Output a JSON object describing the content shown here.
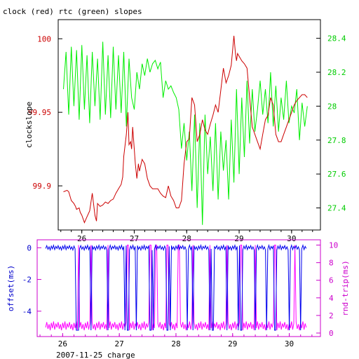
{
  "chart_data": [
    {
      "type": "line",
      "title": "clock (red) rtc (green) slopes",
      "xlabel": "",
      "ylabel": "clockslope",
      "y2label": "",
      "xlim": [
        25.55,
        30.55
      ],
      "ylim": [
        99.87,
        100.013
      ],
      "y2lim": [
        27.27,
        28.51
      ],
      "xticks": [
        26,
        27,
        28,
        29,
        30
      ],
      "yticks": [
        99.9,
        99.95,
        100
      ],
      "ytick_labels": [
        "99.9",
        "99.95",
        "100"
      ],
      "y2ticks": [
        27.4,
        27.6,
        27.8,
        28.0,
        28.2,
        28.4
      ],
      "y2tick_labels": [
        "27.4",
        "27.6",
        "27.8",
        "28",
        "28.2",
        "28.4"
      ],
      "colors": {
        "frame": "#000000",
        "clock": "#cc0000",
        "rtc": "#00ee00",
        "y_axis": "#cc0000",
        "y2_axis": "#00cc00"
      },
      "series": [
        {
          "axis": "left",
          "x": [
            25.65,
            25.72,
            25.75,
            25.8,
            25.85,
            25.88,
            25.9,
            25.95,
            25.97,
            26.0,
            26.02,
            26.05,
            26.1,
            26.15,
            26.2,
            26.25,
            26.28,
            26.3,
            26.35,
            26.4,
            26.45,
            26.5,
            26.55,
            26.6,
            26.65,
            26.7,
            26.75,
            26.78,
            26.8,
            26.85,
            26.88,
            26.9,
            26.93,
            26.95,
            26.97,
            27.0,
            27.02,
            27.05,
            27.08,
            27.1,
            27.15,
            27.2,
            27.25,
            27.3,
            27.35,
            27.4,
            27.45,
            27.5,
            27.55,
            27.6,
            27.65,
            27.7,
            27.75,
            27.8,
            27.85,
            27.9,
            27.95,
            28.0,
            28.05,
            28.1,
            28.15,
            28.2,
            28.25,
            28.3,
            28.35,
            28.4,
            28.45,
            28.5,
            28.55,
            28.6,
            28.65,
            28.7,
            28.75,
            28.8,
            28.85,
            28.9,
            28.93,
            28.95,
            28.97,
            29.0,
            29.05,
            29.1,
            29.15,
            29.2,
            29.25,
            29.3,
            29.35,
            29.4,
            29.45,
            29.5,
            29.55,
            29.6,
            29.65,
            29.7,
            29.75,
            29.8,
            29.85,
            29.9,
            29.95,
            30.0,
            30.05,
            30.1,
            30.15,
            30.2,
            30.25,
            30.3
          ],
          "y": [
            99.896,
            99.897,
            99.896,
            99.89,
            99.888,
            99.886,
            99.884,
            99.885,
            99.882,
            99.88,
            99.878,
            99.875,
            99.879,
            99.883,
            99.895,
            99.88,
            99.876,
            99.888,
            99.886,
            99.887,
            99.889,
            99.888,
            99.89,
            99.891,
            99.895,
            99.898,
            99.901,
            99.906,
            99.92,
            99.935,
            99.95,
            99.928,
            99.93,
            99.925,
            99.94,
            99.925,
            99.915,
            99.905,
            99.915,
            99.91,
            99.918,
            99.915,
            99.905,
            99.9,
            99.898,
            99.898,
            99.898,
            99.895,
            99.893,
            99.892,
            99.9,
            99.893,
            99.89,
            99.885,
            99.885,
            99.89,
            99.915,
            99.93,
            99.932,
            99.96,
            99.955,
            99.93,
            99.935,
            99.945,
            99.938,
            99.935,
            99.942,
            99.948,
            99.955,
            99.95,
            99.965,
            99.98,
            99.97,
            99.975,
            99.982,
            100.002,
            99.99,
            99.985,
            99.99,
            99.988,
            99.985,
            99.983,
            99.98,
            99.96,
            99.94,
            99.935,
            99.93,
            99.925,
            99.935,
            99.945,
            99.948,
            99.96,
            99.955,
            99.935,
            99.93,
            99.93,
            99.935,
            99.94,
            99.945,
            99.95,
            99.955,
            99.958,
            99.96,
            99.962,
            99.962,
            99.96
          ]
        },
        {
          "axis": "right",
          "x": [
            25.65,
            25.7,
            25.75,
            25.8,
            25.85,
            25.9,
            25.95,
            26.0,
            26.05,
            26.1,
            26.15,
            26.2,
            26.25,
            26.3,
            26.35,
            26.4,
            26.45,
            26.5,
            26.55,
            26.6,
            26.65,
            26.7,
            26.75,
            26.8,
            26.85,
            26.9,
            26.95,
            27.0,
            27.05,
            27.1,
            27.15,
            27.2,
            27.25,
            27.3,
            27.35,
            27.4,
            27.45,
            27.5,
            27.55,
            27.6,
            27.65,
            27.7,
            27.75,
            27.8,
            27.85,
            27.9,
            27.95,
            28.0,
            28.05,
            28.1,
            28.15,
            28.2,
            28.25,
            28.3,
            28.35,
            28.4,
            28.45,
            28.5,
            28.55,
            28.6,
            28.65,
            28.7,
            28.75,
            28.8,
            28.85,
            28.9,
            28.95,
            29.0,
            29.05,
            29.1,
            29.15,
            29.2,
            29.25,
            29.3,
            29.35,
            29.4,
            29.45,
            29.5,
            29.55,
            29.6,
            29.65,
            29.7,
            29.75,
            29.8,
            29.85,
            29.9,
            29.95,
            30.0,
            30.05,
            30.1,
            30.15,
            30.2,
            30.25,
            30.3
          ],
          "y": [
            28.1,
            28.32,
            27.95,
            28.35,
            28.0,
            28.33,
            27.92,
            28.36,
            27.98,
            28.3,
            27.9,
            28.32,
            28.0,
            28.28,
            27.92,
            28.38,
            27.95,
            28.3,
            27.93,
            28.35,
            27.98,
            28.3,
            27.96,
            28.32,
            27.88,
            28.28,
            28.05,
            27.98,
            28.2,
            28.1,
            28.25,
            28.18,
            28.28,
            28.2,
            28.25,
            28.27,
            28.22,
            28.26,
            28.05,
            28.15,
            28.1,
            28.12,
            28.08,
            28.05,
            27.98,
            27.75,
            27.9,
            27.68,
            27.85,
            27.5,
            27.95,
            27.4,
            27.9,
            27.3,
            27.95,
            27.6,
            27.82,
            27.5,
            27.9,
            27.45,
            27.85,
            27.62,
            27.8,
            27.45,
            27.92,
            27.55,
            28.1,
            27.6,
            28.05,
            27.7,
            28.15,
            27.78,
            28.1,
            27.85,
            27.98,
            28.15,
            27.95,
            28.1,
            27.9,
            28.2,
            27.88,
            28.12,
            27.85,
            28.05,
            27.92,
            28.15,
            27.9,
            28.0,
            27.96,
            28.1,
            27.8,
            28.02,
            27.88,
            28.0
          ]
        }
      ]
    },
    {
      "type": "line",
      "title": "",
      "xlabel": "2007-11-25 charge",
      "ylabel": "offset(ms)",
      "y2label": "rnd-trip(ms)",
      "xlim": [
        25.55,
        30.55
      ],
      "ylim": [
        -5.6,
        0.5
      ],
      "y2lim": [
        -0.4,
        10.6
      ],
      "xticks": [
        26,
        27,
        28,
        29,
        30
      ],
      "yticks": [
        0,
        -2,
        -4
      ],
      "ytick_labels": [
        "0",
        "-2",
        "-4"
      ],
      "y2ticks": [
        0,
        2,
        4,
        6,
        8,
        10
      ],
      "y2tick_labels": [
        "0",
        "2",
        "4",
        "6",
        "8",
        "10"
      ],
      "colors": {
        "frame": "#cc00cc",
        "offset": "#0000ee",
        "rndtrip": "#ff00ff",
        "y_axis": "#0000cc",
        "y2_axis": "#cc00cc"
      },
      "offset_base": 0.0,
      "offset_spike_value": -5.2,
      "offset_spikes_x": [
        26.25,
        26.28,
        26.5,
        26.8,
        27.1,
        27.15,
        27.3,
        27.55,
        27.6,
        27.85,
        27.9,
        28.2,
        28.3,
        28.6,
        28.65,
        28.9,
        29.1,
        29.15,
        29.4,
        29.6,
        29.75,
        30.0,
        30.2
      ],
      "rndtrip_base": 0.8,
      "rndtrip_spike_value": 10.0,
      "rndtrip_spikes_x": [
        26.28,
        26.5,
        26.8,
        27.15,
        27.55,
        27.65,
        27.85,
        28.05,
        28.3,
        28.6,
        28.9,
        29.15,
        29.4,
        29.75,
        30.1
      ]
    }
  ]
}
